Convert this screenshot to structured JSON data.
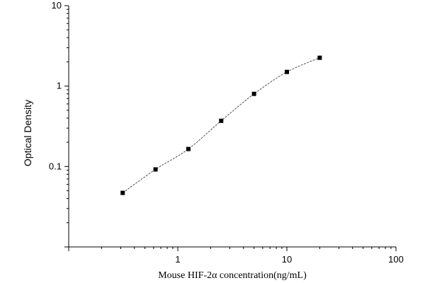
{
  "chart_data": {
    "type": "scatter",
    "xlabel": "Mouse HIF-2α  concentration(ng/mL)",
    "ylabel": "Optical Density",
    "x_scale": "log",
    "y_scale": "log",
    "xlim": [
      0.1,
      100
    ],
    "ylim": [
      0.01,
      10
    ],
    "x_ticks": [
      {
        "value": 1,
        "label": "1"
      },
      {
        "value": 10,
        "label": "10"
      },
      {
        "value": 100,
        "label": "100"
      }
    ],
    "y_ticks": [
      {
        "value": 0.1,
        "label": "0.1"
      },
      {
        "value": 1,
        "label": "1"
      },
      {
        "value": 10,
        "label": "10"
      }
    ],
    "grid": false,
    "series": [
      {
        "x": [
          0.3125,
          0.625,
          1.25,
          2.5,
          5,
          10,
          20
        ],
        "y": [
          0.047,
          0.092,
          0.165,
          0.37,
          0.8,
          1.5,
          2.25
        ]
      }
    ],
    "fit_curve": true,
    "colors": {
      "points": "#000000",
      "fit": "#444444",
      "axes": "#000000"
    }
  }
}
